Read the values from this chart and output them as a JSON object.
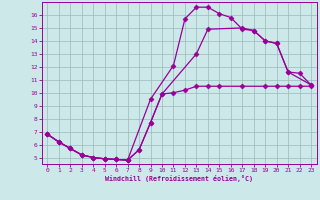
{
  "xlabel": "Windchill (Refroidissement éolien,°C)",
  "background_color": "#cce8e8",
  "line_color": "#990099",
  "grid_color": "#99bbbb",
  "xlim": [
    -0.5,
    23.5
  ],
  "ylim": [
    4.5,
    17.0
  ],
  "xticks": [
    0,
    1,
    2,
    3,
    4,
    5,
    6,
    7,
    8,
    9,
    10,
    11,
    12,
    13,
    14,
    15,
    16,
    17,
    18,
    19,
    20,
    21,
    22,
    23
  ],
  "yticks": [
    5,
    6,
    7,
    8,
    9,
    10,
    11,
    12,
    13,
    14,
    15,
    16
  ],
  "line1_x": [
    0,
    1,
    2,
    3,
    4,
    5,
    6,
    7,
    9,
    11,
    12,
    13,
    14,
    15,
    16,
    17,
    18,
    19,
    20,
    21,
    23
  ],
  "line1_y": [
    6.8,
    6.2,
    5.7,
    5.2,
    5.0,
    4.9,
    4.85,
    4.8,
    9.5,
    12.1,
    15.7,
    16.6,
    16.6,
    16.1,
    15.8,
    14.9,
    14.8,
    14.0,
    13.8,
    11.6,
    10.6
  ],
  "line2_x": [
    0,
    1,
    2,
    3,
    4,
    5,
    6,
    7,
    8,
    9,
    10,
    11,
    12,
    13,
    14,
    15,
    17,
    19,
    20,
    21,
    22,
    23
  ],
  "line2_y": [
    6.8,
    6.2,
    5.7,
    5.2,
    5.0,
    4.9,
    4.85,
    4.8,
    5.6,
    7.7,
    9.9,
    10.0,
    10.2,
    10.5,
    10.5,
    10.5,
    10.5,
    10.5,
    10.5,
    10.5,
    10.5,
    10.5
  ],
  "line3_x": [
    0,
    1,
    2,
    3,
    4,
    5,
    6,
    7,
    8,
    9,
    10,
    13,
    14,
    17,
    18,
    19,
    20,
    21,
    22,
    23
  ],
  "line3_y": [
    6.8,
    6.2,
    5.7,
    5.2,
    5.0,
    4.9,
    4.85,
    4.8,
    5.6,
    7.7,
    9.9,
    13.0,
    14.9,
    15.0,
    14.8,
    14.0,
    13.8,
    11.6,
    11.5,
    10.6
  ],
  "marker": "D",
  "marker_size": 2.5,
  "line_width": 0.9
}
